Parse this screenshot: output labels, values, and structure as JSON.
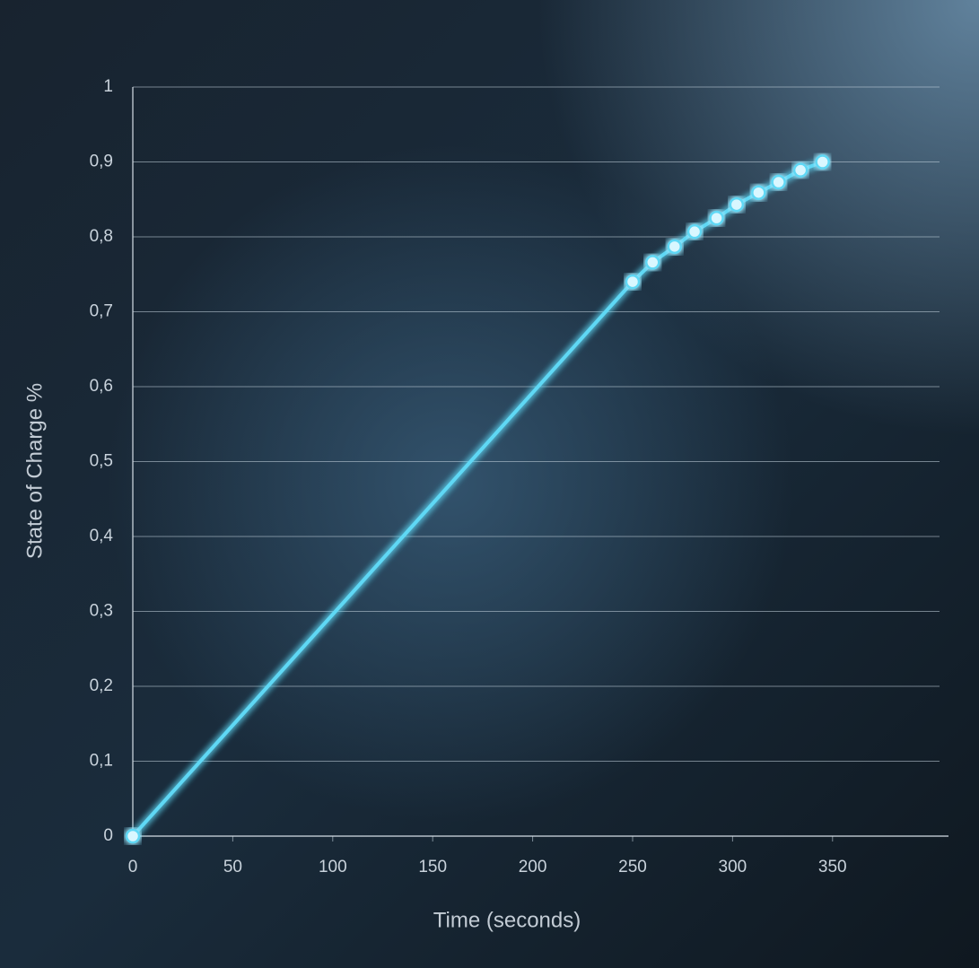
{
  "chart_data": {
    "type": "line",
    "xlabel": "Time (seconds)",
    "ylabel": "State of Charge %",
    "x": [
      0,
      250,
      260,
      271,
      281,
      292,
      302,
      313,
      323,
      334,
      345
    ],
    "values": [
      0,
      0.74,
      0.766,
      0.787,
      0.807,
      0.825,
      0.843,
      0.859,
      0.873,
      0.889,
      0.9
    ],
    "color": "#5fd8f5",
    "markers": true,
    "grid": true,
    "xlim": [
      0,
      408
    ],
    "ylim": [
      0,
      1
    ],
    "xticks": [
      0,
      50,
      100,
      150,
      200,
      250,
      300,
      350
    ],
    "yticks": [
      0,
      {
        "value": 0.1,
        "label": "0,1"
      },
      {
        "value": 0.2,
        "label": "0,2"
      },
      {
        "value": 0.3,
        "label": "0,3"
      },
      {
        "value": 0.4,
        "label": "0,4"
      },
      {
        "value": 0.5,
        "label": "0,5"
      },
      {
        "value": 0.6,
        "label": "0,6"
      },
      {
        "value": 0.7,
        "label": "0,7"
      },
      {
        "value": 0.8,
        "label": "0,8"
      },
      {
        "value": 0.9,
        "label": "0,9"
      },
      1
    ]
  }
}
